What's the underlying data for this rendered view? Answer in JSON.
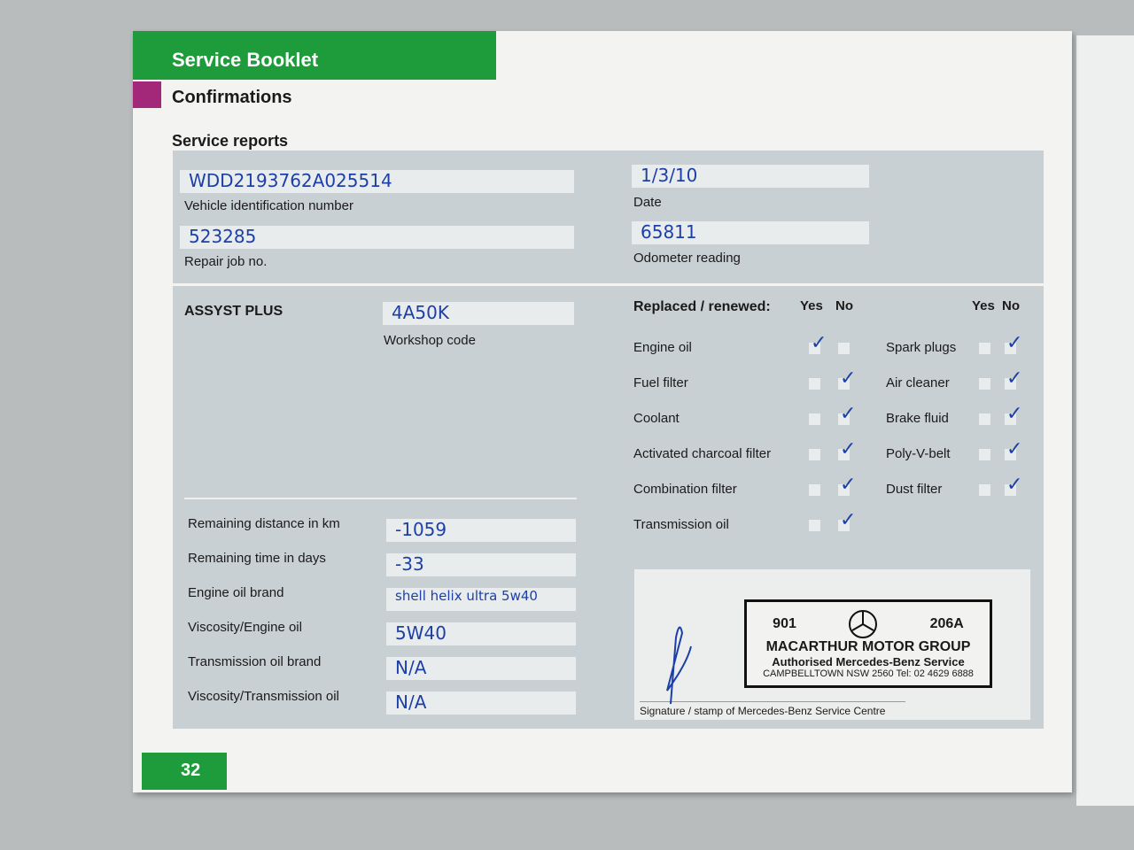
{
  "header": {
    "title": "Service Booklet",
    "section": "Confirmations",
    "subsection": "Service reports"
  },
  "top_fields": [
    {
      "label": "Vehicle identification number",
      "value": "WDD2193762A025514"
    },
    {
      "label": "Repair job no.",
      "value": "523285"
    },
    {
      "label": "Date",
      "value": "1/3/10"
    },
    {
      "label": "Odometer reading",
      "value": "65811"
    }
  ],
  "assyst": {
    "title": "ASSYST PLUS",
    "workshop_code_label": "Workshop code",
    "workshop_code": "4A50K"
  },
  "details": [
    {
      "label": "Remaining distance in km",
      "value": "-1059"
    },
    {
      "label": "Remaining time in days",
      "value": "-33"
    },
    {
      "label": "Engine oil brand",
      "value": "shell helix ultra 5w40"
    },
    {
      "label": "Viscosity/Engine oil",
      "value": "5W40"
    },
    {
      "label": "Transmission oil brand",
      "value": "N/A"
    },
    {
      "label": "Viscosity/Transmission oil",
      "value": "N/A"
    }
  ],
  "replaced": {
    "title": "Replaced / renewed:",
    "yes": "Yes",
    "no": "No",
    "check": "✓",
    "left": [
      {
        "label": "Engine oil",
        "answer": "yes"
      },
      {
        "label": "Fuel filter",
        "answer": "no"
      },
      {
        "label": "Coolant",
        "answer": "no"
      },
      {
        "label": "Activated charcoal filter",
        "answer": "no"
      },
      {
        "label": "Combination filter",
        "answer": "no"
      },
      {
        "label": "Transmission oil",
        "answer": "no"
      }
    ],
    "right": [
      {
        "label": "Spark plugs",
        "answer": "no"
      },
      {
        "label": "Air cleaner",
        "answer": "no"
      },
      {
        "label": "Brake fluid",
        "answer": "no"
      },
      {
        "label": "Poly-V-belt",
        "answer": "no"
      },
      {
        "label": "Dust filter",
        "answer": "no"
      }
    ]
  },
  "stamp": {
    "left_code": "901",
    "right_code": "206A",
    "name": "MACARTHUR MOTOR GROUP",
    "line2": "Authorised Mercedes-Benz Service",
    "line3": "CAMPBELLTOWN NSW 2560  Tel: 02 4629 6888"
  },
  "signature_label": "Signature / stamp of Mercedes-Benz Service Centre",
  "page_number": "32",
  "colors": {
    "green": "#1e9b3a",
    "magenta": "#a4287a",
    "ink": "#1c3fa8",
    "panel": "#c9d0d3"
  }
}
